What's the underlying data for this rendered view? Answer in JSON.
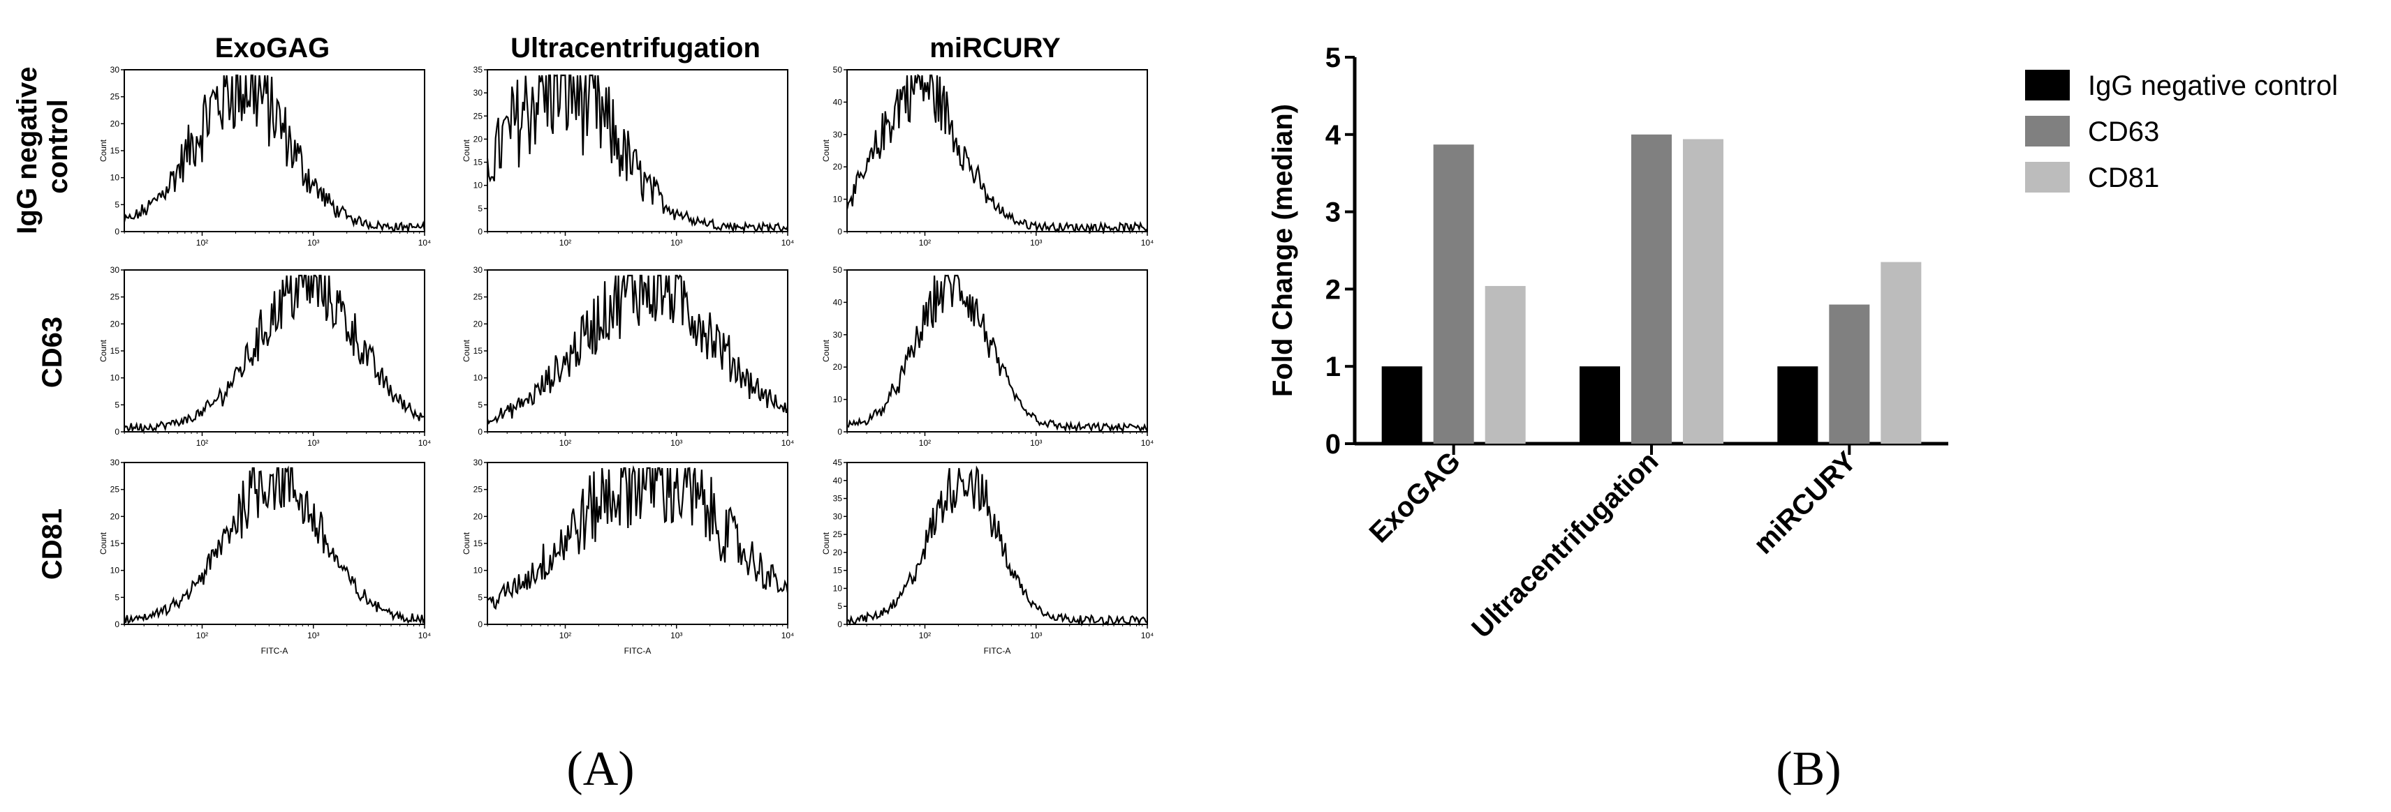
{
  "chart_data": [
    {
      "type": "histogram-grid",
      "columns": [
        "ExoGAG",
        "Ultracentrifugation",
        "miRCURY"
      ],
      "rows": [
        "IgG negative control",
        "CD63",
        "CD81"
      ],
      "xlabel": "FITC-A",
      "ylabel": "Count",
      "x_scale": "log",
      "x_ticks": [
        "10²",
        "10³",
        "10⁴"
      ],
      "panels": [
        {
          "column": "ExoGAG",
          "row": "IgG negative control",
          "ymax": 30,
          "y_ticks": [
            "0",
            "5",
            "10",
            "15",
            "20",
            "25",
            "30"
          ],
          "peak_log10": 2.35,
          "width": 0.42,
          "noise": 0.35
        },
        {
          "column": "Ultracentrifugation",
          "row": "IgG negative control",
          "ymax": 35,
          "y_ticks": [
            "0",
            "5",
            "10",
            "15",
            "20",
            "25",
            "30",
            "35"
          ],
          "peak_log10": 1.95,
          "width": 0.5,
          "noise": 0.45
        },
        {
          "column": "miRCURY",
          "row": "IgG negative control",
          "ymax": 50,
          "y_ticks": [
            "0",
            "10",
            "20",
            "30",
            "40",
            "50"
          ],
          "peak_log10": 1.95,
          "width": 0.35,
          "noise": 0.25
        },
        {
          "column": "ExoGAG",
          "row": "CD63",
          "ymax": 30,
          "y_ticks": [
            "0",
            "5",
            "10",
            "15",
            "20",
            "25",
            "30"
          ],
          "peak_log10": 2.95,
          "width": 0.45,
          "noise": 0.25
        },
        {
          "column": "Ultracentrifugation",
          "row": "CD63",
          "ymax": 30,
          "y_ticks": [
            "0",
            "5",
            "10",
            "15",
            "20",
            "25",
            "30"
          ],
          "peak_log10": 2.75,
          "width": 0.6,
          "noise": 0.3
        },
        {
          "column": "miRCURY",
          "row": "CD63",
          "ymax": 50,
          "y_ticks": [
            "0",
            "10",
            "20",
            "30",
            "40",
            "50"
          ],
          "peak_log10": 2.25,
          "width": 0.32,
          "noise": 0.2
        },
        {
          "column": "ExoGAG",
          "row": "CD81",
          "ymax": 30,
          "y_ticks": [
            "0",
            "5",
            "10",
            "15",
            "20",
            "25",
            "30"
          ],
          "peak_log10": 2.65,
          "width": 0.42,
          "noise": 0.25
        },
        {
          "column": "Ultracentrifugation",
          "row": "CD81",
          "ymax": 30,
          "y_ticks": [
            "0",
            "5",
            "10",
            "15",
            "20",
            "25",
            "30"
          ],
          "peak_log10": 2.75,
          "width": 0.7,
          "noise": 0.35
        },
        {
          "column": "miRCURY",
          "row": "CD81",
          "ymax": 45,
          "y_ticks": [
            "0",
            "5",
            "10",
            "15",
            "20",
            "25",
            "30",
            "35",
            "40",
            "45"
          ],
          "peak_log10": 2.35,
          "width": 0.3,
          "noise": 0.2
        }
      ]
    },
    {
      "type": "bar",
      "categories": [
        "ExoGAG",
        "Ultracentrifugation",
        "miRCURY"
      ],
      "series": [
        {
          "name": "IgG negative control",
          "color": "#000000",
          "values": [
            1.0,
            1.0,
            1.0
          ]
        },
        {
          "name": "CD63",
          "color": "#808080",
          "values": [
            3.87,
            4.0,
            1.8
          ]
        },
        {
          "name": "CD81",
          "color": "#bcbcbc",
          "values": [
            2.04,
            3.94,
            2.35
          ]
        }
      ],
      "ylabel": "Fold Change (median)",
      "ylim": [
        0,
        5
      ],
      "y_ticks": [
        "0",
        "1",
        "2",
        "3",
        "4",
        "5"
      ],
      "legend_position": "top-right"
    }
  ],
  "panel_labels": {
    "a": "(A)",
    "b": "(B)"
  }
}
